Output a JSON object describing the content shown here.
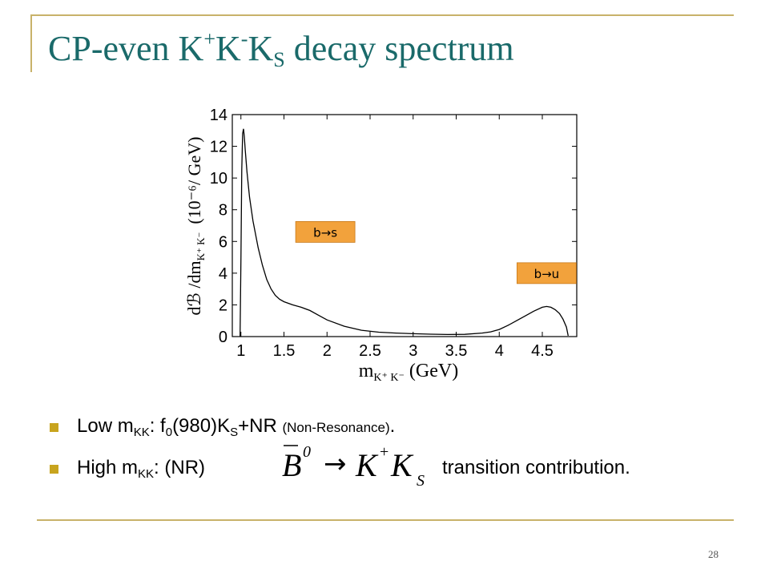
{
  "slide": {
    "title_parts": {
      "a": "CP-even K",
      "b": "+",
      "c": "K",
      "d": "-",
      "e": "K",
      "f": "S",
      "g": " decay spectrum"
    },
    "page_number": "28"
  },
  "bullets": {
    "b1": {
      "a": "Low m",
      "b": "KK",
      "c": ": f",
      "d": "0",
      "e": "(980)K",
      "f": "S",
      "g": "+NR ",
      "h": "(Non-Resonance)",
      "i": "."
    },
    "b2": {
      "a": "High m",
      "b": "KK",
      "c": ": (NR)",
      "d": "transition contribution."
    }
  },
  "formula": {
    "b": "B",
    "bar_sup": "0",
    "arrow": "→",
    "k": "K",
    "k_sup": "+",
    "k2": "K",
    "k2_sub": "S"
  },
  "chart_data": {
    "type": "line",
    "xlabel": "m",
    "xlabel_sub": "K⁺ K⁻",
    "xlabel_unit": "(GeV)",
    "ylabel_main": "dℬ /dm",
    "ylabel_sub": "K⁺ K⁻",
    "ylabel_unit": "(10⁻⁶/ GeV)",
    "xlim": [
      0.9,
      4.9
    ],
    "ylim": [
      0,
      14
    ],
    "xticks": [
      1,
      1.5,
      2,
      2.5,
      3,
      3.5,
      4,
      4.5
    ],
    "xtick_labels": [
      "1",
      "1.5",
      "2",
      "2.5",
      "3",
      "3.5",
      "4",
      "4.5"
    ],
    "yticks": [
      0,
      2,
      4,
      6,
      8,
      10,
      12,
      14
    ],
    "ytick_labels": [
      "0",
      "2",
      "4",
      "6",
      "8",
      "10",
      "12",
      "14"
    ],
    "annotations": [
      {
        "text": "b→s",
        "x": 1.98,
        "y": 6.6
      },
      {
        "text": "b→u",
        "x": 4.55,
        "y": 4.0
      }
    ],
    "series": [
      {
        "x": [
          0.99,
          1.0,
          1.01,
          1.02,
          1.03,
          1.04,
          1.05,
          1.07,
          1.1,
          1.14,
          1.2,
          1.25,
          1.3,
          1.35,
          1.4,
          1.45,
          1.5,
          1.6,
          1.7,
          1.8,
          1.9,
          2.0,
          2.2,
          2.4,
          2.6,
          2.8,
          3.0,
          3.2,
          3.4,
          3.6,
          3.8,
          3.9,
          4.0,
          4.1,
          4.2,
          4.3,
          4.4,
          4.5,
          4.55,
          4.6,
          4.65,
          4.7,
          4.74,
          4.78,
          4.8
        ],
        "y": [
          0,
          5.0,
          10.5,
          12.8,
          13.1,
          12.6,
          11.8,
          10.4,
          8.8,
          7.3,
          5.6,
          4.5,
          3.6,
          3.0,
          2.6,
          2.35,
          2.2,
          2.0,
          1.85,
          1.65,
          1.35,
          1.05,
          0.65,
          0.4,
          0.28,
          0.22,
          0.18,
          0.15,
          0.13,
          0.14,
          0.22,
          0.3,
          0.45,
          0.7,
          1.0,
          1.3,
          1.6,
          1.85,
          1.9,
          1.85,
          1.7,
          1.45,
          1.1,
          0.6,
          0.05
        ]
      }
    ]
  }
}
